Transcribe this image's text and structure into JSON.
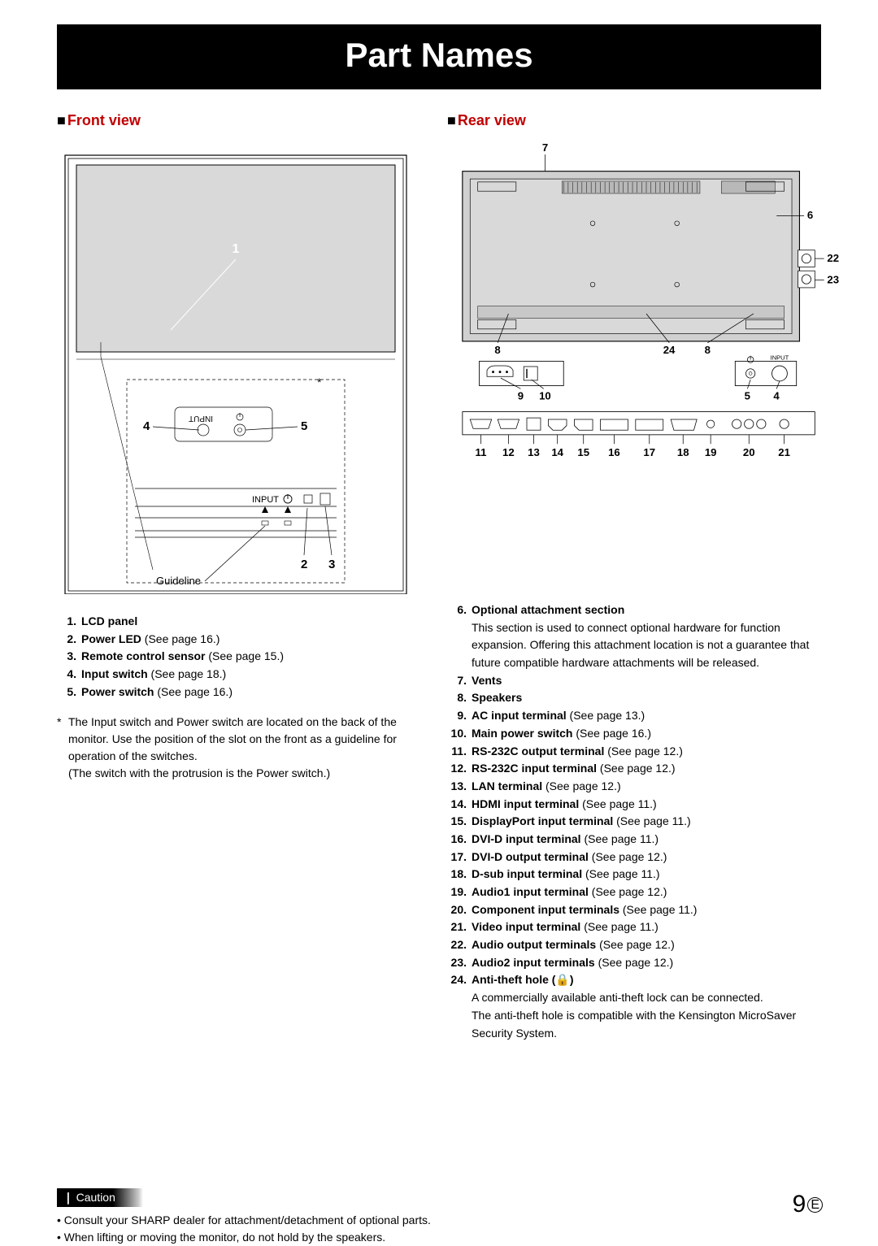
{
  "title": "Part Names",
  "front": {
    "heading": "Front view",
    "labels": {
      "n1": "1",
      "n2": "2",
      "n3": "3",
      "n4": "4",
      "n5": "5",
      "star": "*",
      "guideline": "Guideline",
      "input": "INPUT"
    }
  },
  "rear": {
    "heading": "Rear view",
    "labels": {
      "n4": "4",
      "n5": "5",
      "n6": "6",
      "n7": "7",
      "n8a": "8",
      "n8b": "8",
      "n9": "9",
      "n10": "10",
      "n11": "11",
      "n12": "12",
      "n13": "13",
      "n14": "14",
      "n15": "15",
      "n16": "16",
      "n17": "17",
      "n18": "18",
      "n19": "19",
      "n20": "20",
      "n21": "21",
      "n22": "22",
      "n23": "23",
      "n24": "24",
      "input": "INPUT"
    }
  },
  "left_list": [
    {
      "n": "1.",
      "b": "LCD panel",
      "t": ""
    },
    {
      "n": "2.",
      "b": "Power LED",
      "t": " (See page 16.)"
    },
    {
      "n": "3.",
      "b": "Remote control sensor",
      "t": " (See page 15.)"
    },
    {
      "n": "4.",
      "b": "Input switch",
      "t": " (See page 18.)"
    },
    {
      "n": "5.",
      "b": "Power switch",
      "t": " (See page 16.)"
    }
  ],
  "left_footnote": {
    "star": "*",
    "lines": [
      "The Input switch and Power switch are located on the back of the monitor. Use the position of the slot on the front as a guideline for operation of the switches.",
      "(The switch with the protrusion is the Power switch.)"
    ]
  },
  "right_list": [
    {
      "n": "6.",
      "b": "Optional attachment section",
      "t": "",
      "sub": [
        "This section is used to connect optional hardware for function expansion. Offering this attachment location is not a guarantee that future compatible hardware attachments will be released."
      ]
    },
    {
      "n": "7.",
      "b": "Vents",
      "t": ""
    },
    {
      "n": "8.",
      "b": "Speakers",
      "t": ""
    },
    {
      "n": "9.",
      "b": "AC input terminal",
      "t": " (See page 13.)"
    },
    {
      "n": "10.",
      "b": "Main power switch",
      "t": " (See page 16.)"
    },
    {
      "n": "11.",
      "b": "RS-232C output terminal",
      "t": " (See page 12.)"
    },
    {
      "n": "12.",
      "b": "RS-232C input terminal",
      "t": " (See page 12.)"
    },
    {
      "n": "13.",
      "b": "LAN terminal",
      "t": " (See page 12.)"
    },
    {
      "n": "14.",
      "b": "HDMI input terminal",
      "t": " (See page 11.)"
    },
    {
      "n": "15.",
      "b": "DisplayPort input terminal",
      "t": " (See page 11.)"
    },
    {
      "n": "16.",
      "b": "DVI-D input terminal",
      "t": " (See page 11.)"
    },
    {
      "n": "17.",
      "b": "DVI-D output terminal",
      "t": " (See page 12.)"
    },
    {
      "n": "18.",
      "b": "D-sub input terminal",
      "t": " (See page 11.)"
    },
    {
      "n": "19.",
      "b": "Audio1 input terminal",
      "t": " (See page 12.)"
    },
    {
      "n": "20.",
      "b": "Component input terminals",
      "t": " (See page 11.)"
    },
    {
      "n": "21.",
      "b": "Video input terminal",
      "t": " (See page 11.)"
    },
    {
      "n": "22.",
      "b": "Audio output terminals",
      "t": " (See page 12.)"
    },
    {
      "n": "23.",
      "b": "Audio2 input terminals",
      "t": " (See page 12.)"
    },
    {
      "n": "24.",
      "b": "Anti-theft hole (🔒)",
      "t": "",
      "sub": [
        "A commercially available anti-theft lock can be connected.",
        "The anti-theft hole is compatible with the Kensington MicroSaver Security System."
      ]
    }
  ],
  "caution": {
    "label": "Caution",
    "items": [
      "Consult your SHARP dealer for attachment/detachment of optional parts.",
      "When lifting or moving the monitor, do not hold by the speakers."
    ]
  },
  "page_number": "9",
  "page_letter": "E"
}
